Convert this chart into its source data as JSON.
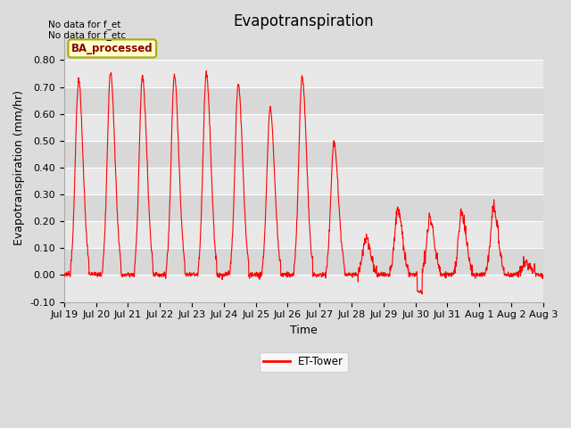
{
  "title": "Evapotranspiration",
  "xlabel": "Time",
  "ylabel": "Evapotranspiration (mm/hr)",
  "ylim": [
    -0.1,
    0.9
  ],
  "yticks": [
    -0.1,
    0.0,
    0.1,
    0.2,
    0.3,
    0.4,
    0.5,
    0.6,
    0.7,
    0.8
  ],
  "ytick_labels": [
    "-0.10",
    "0.00",
    "0.10",
    "0.20",
    "0.30",
    "0.40",
    "0.50",
    "0.60",
    "0.70",
    "0.80"
  ],
  "bg_color": "#dcdcdc",
  "plot_bg_color": "#dcdcdc",
  "line_color": "red",
  "annotation_top_left": "No data for f_et\nNo data for f_etc",
  "legend_label": "ET-Tower",
  "legend_color": "red",
  "box_label": "BA_processed",
  "box_facecolor": "#ffffcc",
  "box_edgecolor": "#aaaa00",
  "xtick_labels": [
    "Jul 19",
    "Jul 20",
    "Jul 21",
    "Jul 22",
    "Jul 23",
    "Jul 24",
    "Jul 25",
    "Jul 26",
    "Jul 27",
    "Jul 28",
    "Jul 29",
    "Jul 30",
    "Jul 31",
    "Aug 1",
    "Aug 2",
    "Aug 3"
  ],
  "n_days": 15,
  "grid_color": "white",
  "title_fontsize": 12,
  "axis_fontsize": 9,
  "tick_fontsize": 8,
  "band_colors": [
    "#e8e8e8",
    "#d8d8d8"
  ]
}
